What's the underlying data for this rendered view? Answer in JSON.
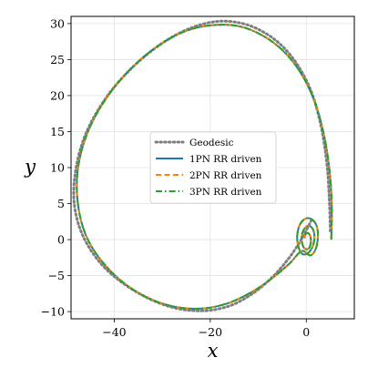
{
  "chart_data": {
    "type": "line",
    "xlabel": "x",
    "ylabel": "y",
    "xlim": [
      -49,
      10
    ],
    "ylim": [
      -11,
      31
    ],
    "x_ticks": [
      -40,
      -20,
      0
    ],
    "x_tick_labels": [
      "−40",
      "−20",
      "0"
    ],
    "y_ticks": [
      -10,
      -5,
      0,
      5,
      10,
      15,
      20,
      25,
      30
    ],
    "y_tick_labels": [
      "−10",
      "−5",
      "0",
      "5",
      "10",
      "15",
      "20",
      "25",
      "30"
    ],
    "grid": true,
    "legend_position": "center-left",
    "series": [
      {
        "name": "Geodesic",
        "color": "#7f7f7f",
        "style": "dotted",
        "x": [
          5.0,
          4.8,
          4.3,
          3.2,
          1.4,
          -1.2,
          -4.6,
          -8.6,
          -13.2,
          -18.6,
          -24.4,
          -30.4,
          -36.4,
          -41.7,
          -45.8,
          -48.0,
          -48.3,
          -46.3,
          -42.0,
          -35.8,
          -29.0,
          -22.4,
          -16.4,
          -11.4,
          -7.2,
          -4.0,
          -1.6,
          0.0,
          1.0
        ],
        "y": [
          1.2,
          5.5,
          10.4,
          15.3,
          19.9,
          23.6,
          26.6,
          28.7,
          30.0,
          30.3,
          29.3,
          27.1,
          23.8,
          19.7,
          14.9,
          9.8,
          4.8,
          0.2,
          -3.9,
          -7.1,
          -9.2,
          -9.9,
          -9.3,
          -7.6,
          -5.3,
          -2.9,
          -0.6,
          1.3,
          2.6
        ]
      },
      {
        "name": "1PN RR driven",
        "color": "#1f77b4",
        "style": "solid",
        "x": [
          5.2,
          5.3,
          4.8,
          3.6,
          1.6,
          -1.2,
          -4.8,
          -9.0,
          -13.8,
          -19.2,
          -25.0,
          -30.9,
          -36.6,
          -41.7,
          -45.6,
          -47.6,
          -47.5,
          -45.5,
          -41.3,
          -35.5,
          -28.9,
          -22.4,
          -16.6,
          -11.4,
          -7.2,
          -3.6,
          -1.0,
          0.8,
          1.9,
          2.4,
          2.2,
          1.2,
          -0.2,
          -1.4,
          -1.9,
          -1.6,
          -0.8,
          0.3,
          1.3,
          1.7,
          1.4,
          0.6,
          -0.3,
          -0.9,
          -0.9,
          -0.4,
          0.4,
          0.9,
          0.9,
          0.4,
          -0.1,
          -0.4
        ],
        "y": [
          0.0,
          4.8,
          9.8,
          14.8,
          19.4,
          23.2,
          26.2,
          28.3,
          29.6,
          29.8,
          29.0,
          26.9,
          23.7,
          19.6,
          14.8,
          9.7,
          4.6,
          0.0,
          -4.0,
          -7.2,
          -9.1,
          -9.6,
          -8.9,
          -7.3,
          -5.4,
          -3.4,
          -1.6,
          -2.2,
          -1.4,
          0.2,
          1.8,
          2.8,
          2.9,
          2.0,
          0.4,
          -1.1,
          -2.0,
          -1.9,
          -1.0,
          0.3,
          1.4,
          1.9,
          1.6,
          0.7,
          -0.4,
          -1.2,
          -1.3,
          -0.6,
          0.3,
          0.9,
          0.8,
          0.2
        ]
      },
      {
        "name": "2PN RR driven",
        "color": "#ff7f0e",
        "style": "dashed",
        "x": [
          5.2,
          5.3,
          4.8,
          3.6,
          1.6,
          -1.2,
          -4.8,
          -9.0,
          -13.8,
          -19.2,
          -25.0,
          -30.9,
          -36.6,
          -41.7,
          -45.6,
          -47.6,
          -47.5,
          -45.5,
          -41.3,
          -35.5,
          -28.9,
          -22.4,
          -16.6,
          -11.4,
          -7.2,
          -3.6,
          -1.0,
          0.8,
          1.9,
          2.4,
          2.2,
          1.2,
          -0.2,
          -1.4,
          -1.9,
          -1.6,
          -0.8,
          0.3,
          1.3,
          1.7,
          1.4,
          0.6,
          -0.3,
          -0.9,
          -0.9,
          -0.4,
          0.4,
          0.9,
          0.9,
          0.4,
          -0.1,
          -0.4
        ],
        "y": [
          0.0,
          4.8,
          9.8,
          14.8,
          19.4,
          23.2,
          26.2,
          28.3,
          29.6,
          29.8,
          29.0,
          26.9,
          23.7,
          19.6,
          14.8,
          9.7,
          4.6,
          0.0,
          -4.0,
          -7.2,
          -9.1,
          -9.6,
          -8.9,
          -7.3,
          -5.4,
          -3.4,
          -1.6,
          -2.2,
          -1.4,
          0.2,
          1.8,
          2.8,
          2.9,
          2.0,
          0.4,
          -1.1,
          -2.0,
          -1.9,
          -1.0,
          0.3,
          1.4,
          1.9,
          1.6,
          0.7,
          -0.4,
          -1.2,
          -1.3,
          -0.6,
          0.3,
          0.9,
          0.8,
          0.2
        ]
      },
      {
        "name": "3PN RR driven",
        "color": "#2ca02c",
        "style": "dashdot",
        "x": [
          5.2,
          5.3,
          4.8,
          3.6,
          1.6,
          -1.2,
          -4.8,
          -9.0,
          -13.8,
          -19.2,
          -25.0,
          -30.9,
          -36.6,
          -41.7,
          -45.6,
          -47.6,
          -47.5,
          -45.5,
          -41.3,
          -35.5,
          -28.9,
          -22.4,
          -16.6,
          -11.4,
          -7.2,
          -3.6,
          -1.0,
          0.8,
          1.9,
          2.4,
          2.2,
          1.2,
          -0.2,
          -1.4,
          -1.9,
          -1.6,
          -0.8,
          0.3,
          1.3,
          1.7,
          1.4,
          0.6,
          -0.3,
          -0.9,
          -0.9,
          -0.4,
          0.4,
          0.9,
          0.9,
          0.4,
          -0.1,
          -0.4
        ],
        "y": [
          0.0,
          4.8,
          9.8,
          14.8,
          19.4,
          23.2,
          26.2,
          28.3,
          29.6,
          29.8,
          29.0,
          26.9,
          23.7,
          19.6,
          14.8,
          9.7,
          4.6,
          0.0,
          -4.0,
          -7.2,
          -9.1,
          -9.6,
          -8.9,
          -7.3,
          -5.4,
          -3.4,
          -1.6,
          -2.2,
          -1.4,
          0.2,
          1.8,
          2.8,
          2.9,
          2.0,
          0.4,
          -1.1,
          -2.0,
          -1.9,
          -1.0,
          0.3,
          1.4,
          1.9,
          1.6,
          0.7,
          -0.4,
          -1.2,
          -1.3,
          -0.6,
          0.3,
          0.9,
          0.8,
          0.2
        ]
      }
    ]
  }
}
